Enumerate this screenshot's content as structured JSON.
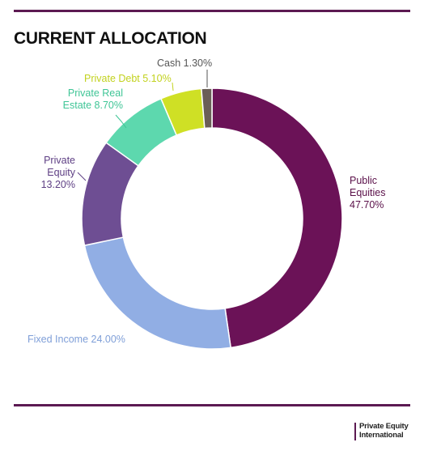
{
  "header": {
    "title": "CURRENT ALLOCATION"
  },
  "brand": {
    "line1": "Private Equity",
    "line2": "International"
  },
  "chart_data": {
    "type": "donut",
    "title": "CURRENT ALLOCATION",
    "unit": "%",
    "slices": [
      {
        "name": "Public Equities",
        "label_lines": [
          "Public",
          "Equities",
          "47.70%"
        ],
        "value": 47.7,
        "color": "#6b1257",
        "text_color": "#5a1049"
      },
      {
        "name": "Fixed Income",
        "label_lines": [
          "Fixed Income 24.00%"
        ],
        "value": 24.0,
        "color": "#91aee4",
        "text_color": "#7f9fd8"
      },
      {
        "name": "Private Equity",
        "label_lines": [
          "Private",
          "Equity",
          "13.20%"
        ],
        "value": 13.2,
        "color": "#6e4e93",
        "text_color": "#5e3f84"
      },
      {
        "name": "Private Real Estate",
        "label_lines": [
          "Private Real",
          "Estate 8.70%"
        ],
        "value": 8.7,
        "color": "#5dd8ae",
        "text_color": "#3fc596"
      },
      {
        "name": "Private Debt",
        "label_lines": [
          "Private Debt 5.10%"
        ],
        "value": 5.1,
        "color": "#cfe025",
        "text_color": "#c2d21e"
      },
      {
        "name": "Cash",
        "label_lines": [
          "Cash 1.30%"
        ],
        "value": 1.3,
        "color": "#6a5e57",
        "text_color": "#555555"
      }
    ]
  }
}
